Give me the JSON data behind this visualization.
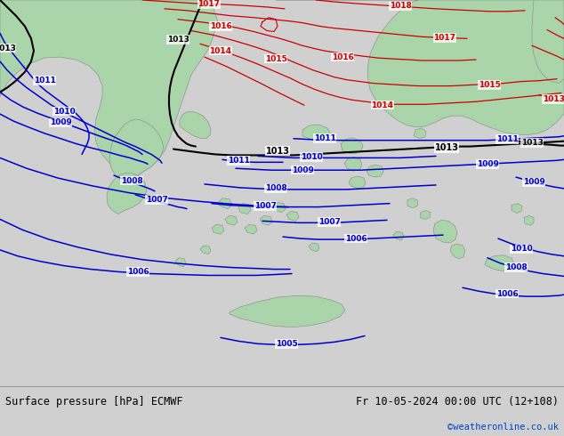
{
  "title_left": "Surface pressure [hPa] ECMWF",
  "title_right": "Fr 10-05-2024 00:00 UTC (12+108)",
  "copyright": "©weatheronline.co.uk",
  "bg_color": "#d0d0d0",
  "land_color": "#aad4aa",
  "sea_color": "#d0d0d0",
  "red_color": "#cc0000",
  "blue_color": "#0000cc",
  "black_color": "#000000",
  "footer_bg": "#e0e0e0",
  "figsize": [
    6.34,
    4.9
  ],
  "dpi": 100
}
